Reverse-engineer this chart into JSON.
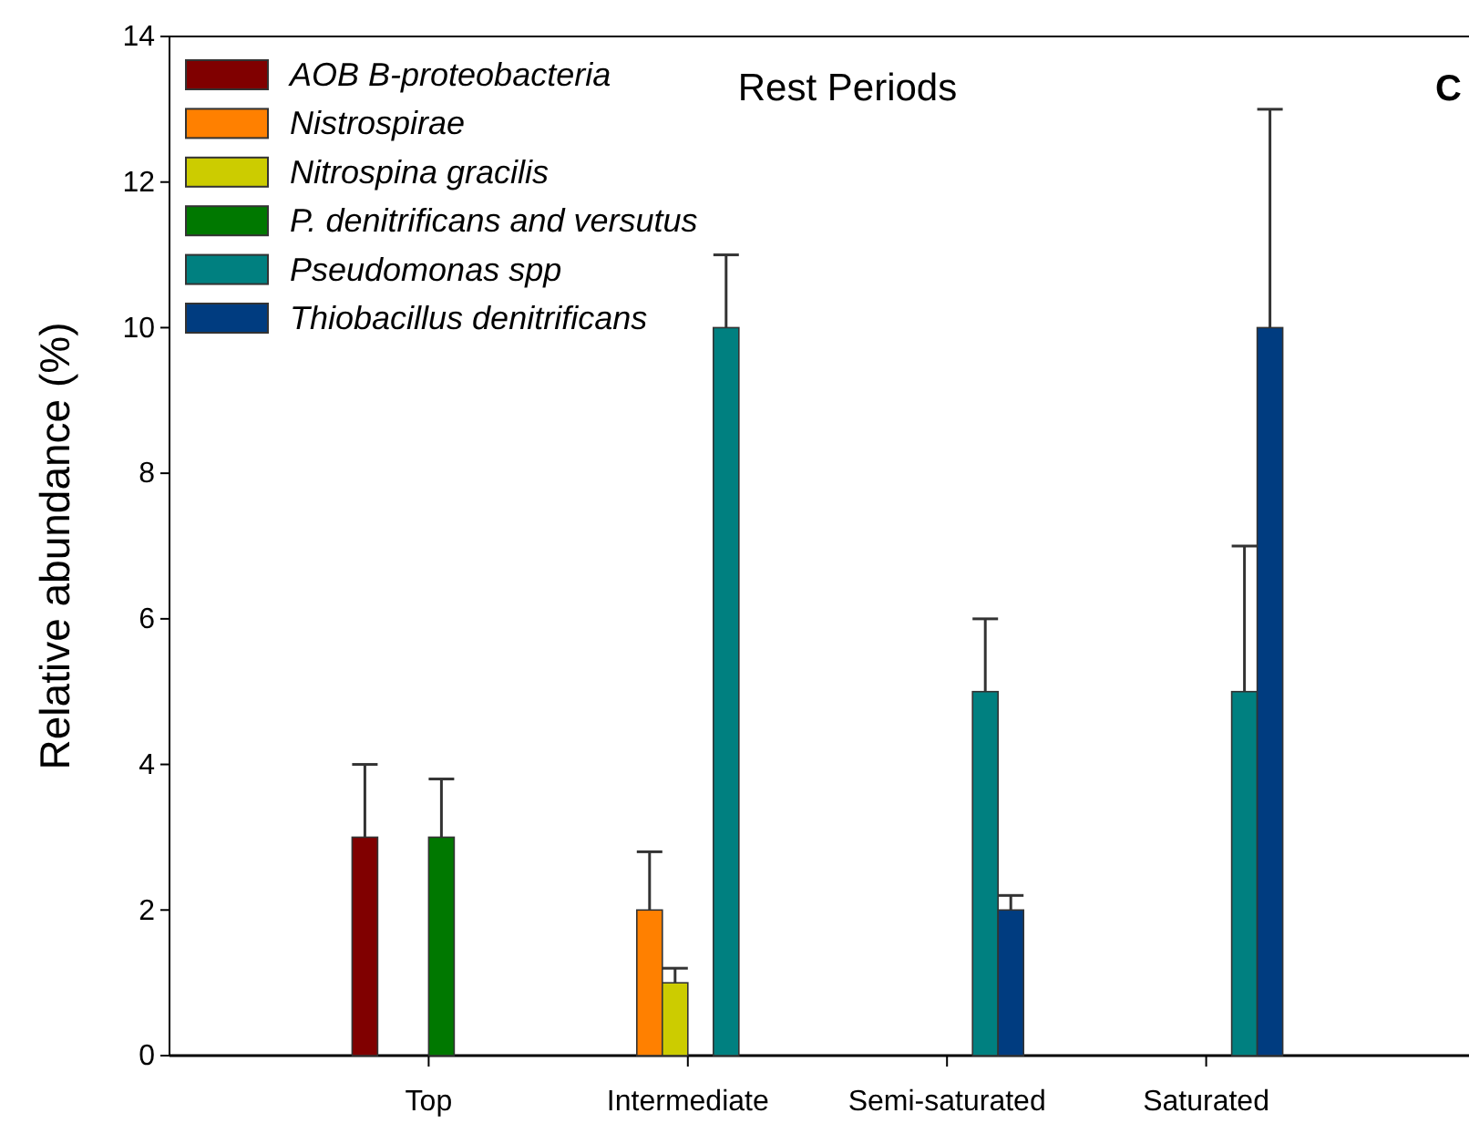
{
  "chart_data": {
    "type": "bar",
    "title": "Rest Periods",
    "ylabel": "Relative abundance (%)",
    "annotations": [
      "C"
    ],
    "categories": [
      "Top",
      "Intermediate",
      "Semi-saturated",
      "Saturated"
    ],
    "series": [
      {
        "name": "AOB B-proteobacteria",
        "color": "#800000",
        "values": [
          3,
          null,
          null,
          null
        ],
        "errors": [
          [
            3,
            4
          ],
          null,
          null,
          null
        ]
      },
      {
        "name": "Nistrospirae",
        "color": "#ff8000",
        "values": [
          null,
          2,
          null,
          null
        ],
        "errors": [
          null,
          [
            2,
            2.8
          ],
          null,
          null
        ]
      },
      {
        "name": "Nitrospina gracilis",
        "color": "#cccc00",
        "values": [
          null,
          1,
          null,
          null
        ],
        "errors": [
          null,
          [
            1,
            1.2
          ],
          null,
          null
        ]
      },
      {
        "name": "P. denitrificans and versutus",
        "color": "#007800",
        "values": [
          3,
          null,
          null,
          null
        ],
        "errors": [
          [
            3,
            3.8
          ],
          null,
          null,
          null
        ]
      },
      {
        "name": "Pseudomonas spp",
        "color": "#008080",
        "values": [
          null,
          10,
          5,
          5
        ],
        "errors": [
          null,
          [
            10,
            11
          ],
          [
            5,
            6
          ],
          [
            5,
            7
          ]
        ]
      },
      {
        "name": "Thiobacillus denitrificans",
        "color": "#003c80",
        "values": [
          null,
          null,
          2,
          10
        ],
        "errors": [
          null,
          null,
          [
            2,
            2.2
          ],
          [
            10,
            13
          ]
        ]
      }
    ],
    "ylim": [
      0,
      14
    ],
    "yticks": [
      0,
      2,
      4,
      6,
      8,
      10,
      12,
      14
    ],
    "legend": "top left"
  }
}
